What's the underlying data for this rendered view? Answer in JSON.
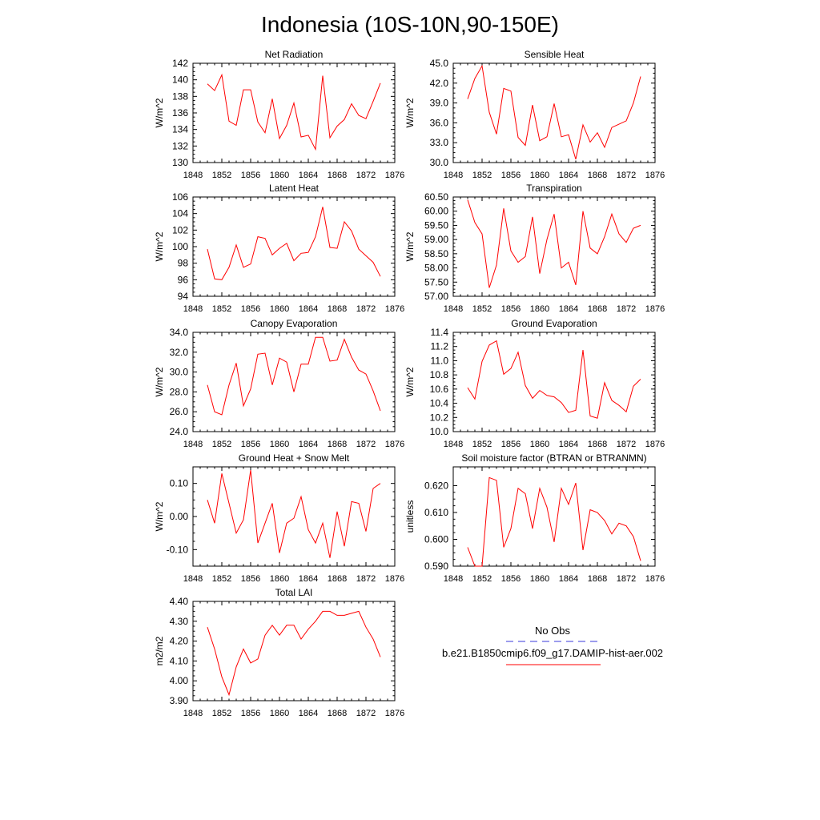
{
  "figure": {
    "title": "Indonesia (10S-10N,90-150E)",
    "legend": {
      "obs_label": "No Obs",
      "model_label": "b.e21.B1850cmip6.f09_g17.DAMIP-hist-aer.002",
      "obs_color": "#3a3adb",
      "model_color": "#ff0000"
    }
  },
  "chart_data": [
    {
      "type": "line",
      "title": "Net Radiation",
      "ylabel": "W/m^2",
      "xlim": [
        1848,
        1876
      ],
      "ylim": [
        130,
        142
      ],
      "xticks": [
        "1848",
        "1852",
        "1856",
        "1860",
        "1864",
        "1868",
        "1872",
        "1876"
      ],
      "yticks": [
        "130",
        "132",
        "134",
        "136",
        "138",
        "140",
        "142"
      ],
      "x": [
        1850,
        1851,
        1852,
        1853,
        1854,
        1855,
        1856,
        1857,
        1858,
        1859,
        1860,
        1861,
        1862,
        1863,
        1864,
        1865,
        1866,
        1867,
        1868,
        1869,
        1870,
        1871,
        1872,
        1873,
        1874
      ],
      "series": [
        {
          "values": [
            139.5,
            138.7,
            140.6,
            135.0,
            134.5,
            138.8,
            138.8,
            134.9,
            133.6,
            137.7,
            132.9,
            134.5,
            137.2,
            133.1,
            133.3,
            131.6,
            140.5,
            133.0,
            134.4,
            135.2,
            137.1,
            135.7,
            135.3,
            137.4,
            139.6
          ]
        }
      ]
    },
    {
      "type": "line",
      "title": "Sensible Heat",
      "ylabel": "W/m^2",
      "xlim": [
        1848,
        1876
      ],
      "ylim": [
        30,
        45
      ],
      "xticks": [
        "1848",
        "1852",
        "1856",
        "1860",
        "1864",
        "1868",
        "1872",
        "1876"
      ],
      "yticks": [
        "30.0",
        "33.0",
        "36.0",
        "39.0",
        "42.0",
        "45.0"
      ],
      "x": [
        1850,
        1851,
        1852,
        1853,
        1854,
        1855,
        1856,
        1857,
        1858,
        1859,
        1860,
        1861,
        1862,
        1863,
        1864,
        1865,
        1866,
        1867,
        1868,
        1869,
        1870,
        1871,
        1872,
        1873,
        1874
      ],
      "series": [
        {
          "values": [
            39.6,
            42.7,
            44.6,
            37.6,
            34.3,
            41.2,
            40.8,
            33.8,
            32.6,
            38.7,
            33.3,
            33.9,
            38.9,
            33.9,
            34.2,
            30.5,
            35.7,
            33.1,
            34.5,
            32.3,
            35.3,
            35.8,
            36.3,
            39.0,
            43.0
          ]
        }
      ]
    },
    {
      "type": "line",
      "title": "Latent Heat",
      "ylabel": "W/m^2",
      "xlim": [
        1848,
        1876
      ],
      "ylim": [
        94,
        106
      ],
      "xticks": [
        "1848",
        "1852",
        "1856",
        "1860",
        "1864",
        "1868",
        "1872",
        "1876"
      ],
      "yticks": [
        "94",
        "96",
        "98",
        "100",
        "102",
        "104",
        "106"
      ],
      "x": [
        1850,
        1851,
        1852,
        1853,
        1854,
        1855,
        1856,
        1857,
        1858,
        1859,
        1860,
        1861,
        1862,
        1863,
        1864,
        1865,
        1866,
        1867,
        1868,
        1869,
        1870,
        1871,
        1872,
        1873,
        1874
      ],
      "series": [
        {
          "values": [
            99.7,
            96.1,
            96.0,
            97.5,
            100.2,
            97.5,
            97.9,
            101.2,
            101.0,
            99.0,
            99.8,
            100.4,
            98.3,
            99.2,
            99.3,
            101.2,
            104.8,
            99.9,
            99.8,
            103.0,
            101.9,
            99.7,
            98.9,
            98.1,
            96.4
          ]
        }
      ]
    },
    {
      "type": "line",
      "title": "Transpiration",
      "ylabel": "W/m^2",
      "xlim": [
        1848,
        1876
      ],
      "ylim": [
        57,
        60.5
      ],
      "xticks": [
        "1848",
        "1852",
        "1856",
        "1860",
        "1864",
        "1868",
        "1872",
        "1876"
      ],
      "yticks": [
        "57.00",
        "57.50",
        "58.00",
        "58.50",
        "59.00",
        "59.50",
        "60.00",
        "60.50"
      ],
      "x": [
        1850,
        1851,
        1852,
        1853,
        1854,
        1855,
        1856,
        1857,
        1858,
        1859,
        1860,
        1861,
        1862,
        1863,
        1864,
        1865,
        1866,
        1867,
        1868,
        1869,
        1870,
        1871,
        1872,
        1873,
        1874
      ],
      "series": [
        {
          "values": [
            60.4,
            59.6,
            59.2,
            57.3,
            58.1,
            60.1,
            58.6,
            58.2,
            58.4,
            59.8,
            57.8,
            59.0,
            59.9,
            58.0,
            58.2,
            57.4,
            60.0,
            58.7,
            58.5,
            59.1,
            59.9,
            59.2,
            58.9,
            59.4,
            59.5
          ]
        }
      ]
    },
    {
      "type": "line",
      "title": "Canopy Evaporation",
      "ylabel": "W/m^2",
      "xlim": [
        1848,
        1876
      ],
      "ylim": [
        24,
        34
      ],
      "xticks": [
        "1848",
        "1852",
        "1856",
        "1860",
        "1864",
        "1868",
        "1872",
        "1876"
      ],
      "yticks": [
        "24.0",
        "26.0",
        "28.0",
        "30.0",
        "32.0",
        "34.0"
      ],
      "x": [
        1850,
        1851,
        1852,
        1853,
        1854,
        1855,
        1856,
        1857,
        1858,
        1859,
        1860,
        1861,
        1862,
        1863,
        1864,
        1865,
        1866,
        1867,
        1868,
        1869,
        1870,
        1871,
        1872,
        1873,
        1874
      ],
      "series": [
        {
          "values": [
            28.7,
            26.0,
            25.7,
            28.7,
            30.9,
            26.6,
            28.3,
            31.8,
            31.9,
            28.7,
            31.4,
            31.0,
            28.0,
            30.8,
            30.8,
            33.5,
            33.5,
            31.1,
            31.2,
            33.3,
            31.5,
            30.2,
            29.8,
            28.1,
            26.1
          ]
        }
      ]
    },
    {
      "type": "line",
      "title": "Ground Evaporation",
      "ylabel": "W/m^2",
      "xlim": [
        1848,
        1876
      ],
      "ylim": [
        10.0,
        11.4
      ],
      "xticks": [
        "1848",
        "1852",
        "1856",
        "1860",
        "1864",
        "1868",
        "1872",
        "1876"
      ],
      "yticks": [
        "10.0",
        "10.2",
        "10.4",
        "10.6",
        "10.8",
        "11.0",
        "11.2",
        "11.4"
      ],
      "x": [
        1850,
        1851,
        1852,
        1853,
        1854,
        1855,
        1856,
        1857,
        1858,
        1859,
        1860,
        1861,
        1862,
        1863,
        1864,
        1865,
        1866,
        1867,
        1868,
        1869,
        1870,
        1871,
        1872,
        1873,
        1874
      ],
      "series": [
        {
          "values": [
            10.62,
            10.46,
            10.99,
            11.22,
            11.28,
            10.81,
            10.89,
            11.12,
            10.65,
            10.47,
            10.58,
            10.51,
            10.49,
            10.41,
            10.27,
            10.3,
            11.15,
            10.22,
            10.19,
            10.69,
            10.44,
            10.37,
            10.28,
            10.64,
            10.74
          ]
        }
      ]
    },
    {
      "type": "line",
      "title": "Ground Heat + Snow Melt",
      "ylabel": "W/m^2",
      "xlim": [
        1848,
        1876
      ],
      "ylim": [
        -0.15,
        0.15
      ],
      "xticks": [
        "1848",
        "1852",
        "1856",
        "1860",
        "1864",
        "1868",
        "1872",
        "1876"
      ],
      "yticks": [
        "-0.10",
        "0.00",
        "0.10"
      ],
      "ytick_values": [
        -0.1,
        0,
        0.1
      ],
      "x": [
        1850,
        1851,
        1852,
        1853,
        1854,
        1855,
        1856,
        1857,
        1858,
        1859,
        1860,
        1861,
        1862,
        1863,
        1864,
        1865,
        1866,
        1867,
        1868,
        1869,
        1870,
        1871,
        1872,
        1873,
        1874
      ],
      "series": [
        {
          "values": [
            0.05,
            -0.02,
            0.13,
            0.04,
            -0.05,
            -0.01,
            0.14,
            -0.08,
            -0.02,
            0.04,
            -0.11,
            -0.02,
            -0.005,
            0.06,
            -0.04,
            -0.08,
            -0.02,
            -0.125,
            0.015,
            -0.09,
            0.045,
            0.04,
            -0.045,
            0.085,
            0.1
          ]
        }
      ]
    },
    {
      "type": "line",
      "title": "Soil moisture factor (BTRAN or BTRANMN)",
      "ylabel": "unitless",
      "xlim": [
        1848,
        1876
      ],
      "ylim": [
        0.59,
        0.627
      ],
      "xticks": [
        "1848",
        "1852",
        "1856",
        "1860",
        "1864",
        "1868",
        "1872",
        "1876"
      ],
      "yticks": [
        "0.590",
        "0.600",
        "0.610",
        "0.620"
      ],
      "ytick_values": [
        0.59,
        0.6,
        0.61,
        0.62
      ],
      "x": [
        1850,
        1851,
        1852,
        1853,
        1854,
        1855,
        1856,
        1857,
        1858,
        1859,
        1860,
        1861,
        1862,
        1863,
        1864,
        1865,
        1866,
        1867,
        1868,
        1869,
        1870,
        1871,
        1872,
        1873,
        1874
      ],
      "series": [
        {
          "values": [
            0.597,
            0.59,
            0.59,
            0.623,
            0.622,
            0.597,
            0.604,
            0.619,
            0.617,
            0.604,
            0.619,
            0.612,
            0.599,
            0.619,
            0.613,
            0.621,
            0.596,
            0.611,
            0.61,
            0.607,
            0.602,
            0.606,
            0.605,
            0.601,
            0.592
          ]
        }
      ]
    },
    {
      "type": "line",
      "title": "Total LAI",
      "ylabel": "m2/m2",
      "xlim": [
        1848,
        1876
      ],
      "ylim": [
        3.9,
        4.4
      ],
      "xticks": [
        "1848",
        "1852",
        "1856",
        "1860",
        "1864",
        "1868",
        "1872",
        "1876"
      ],
      "yticks": [
        "3.90",
        "4.00",
        "4.10",
        "4.20",
        "4.30",
        "4.40"
      ],
      "x": [
        1850,
        1851,
        1852,
        1853,
        1854,
        1855,
        1856,
        1857,
        1858,
        1859,
        1860,
        1861,
        1862,
        1863,
        1864,
        1865,
        1866,
        1867,
        1868,
        1869,
        1870,
        1871,
        1872,
        1873,
        1874
      ],
      "series": [
        {
          "values": [
            4.27,
            4.16,
            4.02,
            3.93,
            4.07,
            4.16,
            4.09,
            4.11,
            4.23,
            4.28,
            4.23,
            4.28,
            4.28,
            4.21,
            4.26,
            4.3,
            4.35,
            4.35,
            4.33,
            4.33,
            4.34,
            4.35,
            4.27,
            4.21,
            4.12
          ]
        }
      ]
    }
  ]
}
